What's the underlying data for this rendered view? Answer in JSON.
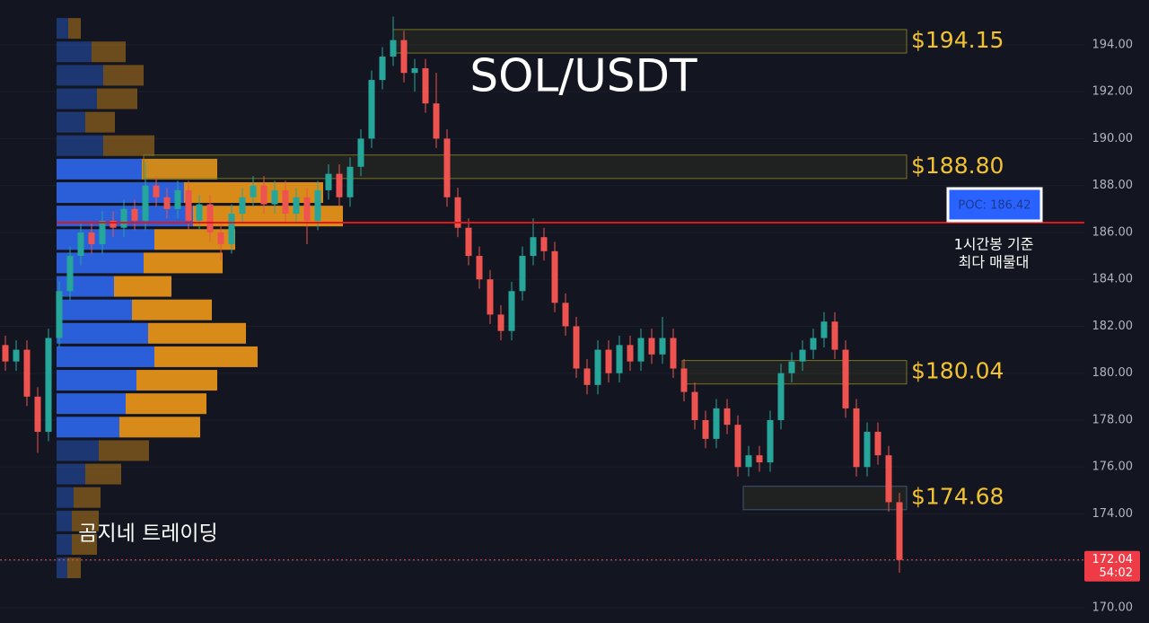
{
  "chart_data": {
    "type": "candlestick",
    "title": "SOL/USDT",
    "watermark": "곰지네 트레이딩",
    "ylim": [
      169.35,
      195.91
    ],
    "yticks": [
      {
        "value": 170,
        "label": "170.00"
      },
      {
        "value": 172,
        "label": "172.00"
      },
      {
        "value": 174,
        "label": "174.00"
      },
      {
        "value": 176,
        "label": "176.00"
      },
      {
        "value": 178,
        "label": "178.00"
      },
      {
        "value": 180,
        "label": "180.00"
      },
      {
        "value": 182,
        "label": "182.00"
      },
      {
        "value": 184,
        "label": "184.00"
      },
      {
        "value": 186,
        "label": "186.00"
      },
      {
        "value": 188,
        "label": "188.00"
      },
      {
        "value": 190,
        "label": "190.00"
      },
      {
        "value": 192,
        "label": "192.00"
      },
      {
        "value": 194,
        "label": "194.00"
      }
    ],
    "grid": true,
    "up_color": "#26a69a",
    "down_color": "#ef5350",
    "candles": [
      [
        181.2,
        181.6,
        180.1,
        180.5
      ],
      [
        180.5,
        181.4,
        180.1,
        181.0
      ],
      [
        181.0,
        181.4,
        178.6,
        179.0
      ],
      [
        179.0,
        179.4,
        176.6,
        177.5
      ],
      [
        177.5,
        181.9,
        177.1,
        181.5
      ],
      [
        181.5,
        183.9,
        181.1,
        183.5
      ],
      [
        183.5,
        185.4,
        183.1,
        185.0
      ],
      [
        185.0,
        186.4,
        184.6,
        186.0
      ],
      [
        186.0,
        186.4,
        185.1,
        185.5
      ],
      [
        185.5,
        186.9,
        185.1,
        186.5
      ],
      [
        186.5,
        186.9,
        185.8,
        186.2
      ],
      [
        186.2,
        187.4,
        185.8,
        187.0
      ],
      [
        187.0,
        187.4,
        186.1,
        186.5
      ],
      [
        186.5,
        189.0,
        186.1,
        188.0
      ],
      [
        188.0,
        188.4,
        187.1,
        187.5
      ],
      [
        187.5,
        187.9,
        186.6,
        187.0
      ],
      [
        187.0,
        188.2,
        186.6,
        187.8
      ],
      [
        187.8,
        188.2,
        186.1,
        186.5
      ],
      [
        186.5,
        187.6,
        186.1,
        187.2
      ],
      [
        187.2,
        187.6,
        185.6,
        186.0
      ],
      [
        186.0,
        186.4,
        184.8,
        185.5
      ],
      [
        185.5,
        187.2,
        185.1,
        186.8
      ],
      [
        186.8,
        187.9,
        186.4,
        187.5
      ],
      [
        187.5,
        188.4,
        187.1,
        188.0
      ],
      [
        188.0,
        188.4,
        186.8,
        187.2
      ],
      [
        187.2,
        188.2,
        186.8,
        187.8
      ],
      [
        187.8,
        188.2,
        186.4,
        186.8
      ],
      [
        186.8,
        187.9,
        186.4,
        187.5
      ],
      [
        187.5,
        187.9,
        185.5,
        186.5
      ],
      [
        186.5,
        188.2,
        186.1,
        187.8
      ],
      [
        187.8,
        188.9,
        187.4,
        188.5
      ],
      [
        188.5,
        188.9,
        187.1,
        187.5
      ],
      [
        187.5,
        189.2,
        187.1,
        188.8
      ],
      [
        188.8,
        190.4,
        188.4,
        190.0
      ],
      [
        190.0,
        192.9,
        189.6,
        192.5
      ],
      [
        192.5,
        193.9,
        192.1,
        193.5
      ],
      [
        193.5,
        195.2,
        193.1,
        194.2
      ],
      [
        194.2,
        194.6,
        192.4,
        192.8
      ],
      [
        192.8,
        193.4,
        192.0,
        193.0
      ],
      [
        193.0,
        193.4,
        191.1,
        191.5
      ],
      [
        191.5,
        192.8,
        189.6,
        190.0
      ],
      [
        190.0,
        190.4,
        187.1,
        187.5
      ],
      [
        187.5,
        187.9,
        185.8,
        186.2
      ],
      [
        186.2,
        186.6,
        184.6,
        185.0
      ],
      [
        185.0,
        185.4,
        183.6,
        184.0
      ],
      [
        184.0,
        184.4,
        182.1,
        182.5
      ],
      [
        182.5,
        182.9,
        181.4,
        181.8
      ],
      [
        181.8,
        183.9,
        181.4,
        183.5
      ],
      [
        183.5,
        185.4,
        183.1,
        185.0
      ],
      [
        185.0,
        186.6,
        184.6,
        185.8
      ],
      [
        185.8,
        186.2,
        184.8,
        185.2
      ],
      [
        185.2,
        185.6,
        182.6,
        183.0
      ],
      [
        183.0,
        183.4,
        181.6,
        182.0
      ],
      [
        182.0,
        182.4,
        179.8,
        180.2
      ],
      [
        180.2,
        180.6,
        179.1,
        179.5
      ],
      [
        179.5,
        181.4,
        179.1,
        181.0
      ],
      [
        181.0,
        181.4,
        179.6,
        180.0
      ],
      [
        180.0,
        181.6,
        179.6,
        181.2
      ],
      [
        181.2,
        181.6,
        180.1,
        180.5
      ],
      [
        180.5,
        181.9,
        180.1,
        181.5
      ],
      [
        181.5,
        181.9,
        180.4,
        180.8
      ],
      [
        180.8,
        182.4,
        180.4,
        181.5
      ],
      [
        181.5,
        181.9,
        179.8,
        180.2
      ],
      [
        180.2,
        180.6,
        178.8,
        179.2
      ],
      [
        179.2,
        179.6,
        177.6,
        178.0
      ],
      [
        178.0,
        178.4,
        176.8,
        177.2
      ],
      [
        177.2,
        178.9,
        176.8,
        178.5
      ],
      [
        178.5,
        178.9,
        177.4,
        177.8
      ],
      [
        177.8,
        178.2,
        175.6,
        176.0
      ],
      [
        176.0,
        176.9,
        175.6,
        176.5
      ],
      [
        176.5,
        176.9,
        175.8,
        176.2
      ],
      [
        176.2,
        178.4,
        175.8,
        178.0
      ],
      [
        178.0,
        180.4,
        177.6,
        180.0
      ],
      [
        180.0,
        180.9,
        179.6,
        180.5
      ],
      [
        180.5,
        181.4,
        180.1,
        181.0
      ],
      [
        181.0,
        181.9,
        180.6,
        181.5
      ],
      [
        181.5,
        182.6,
        181.1,
        182.2
      ],
      [
        182.2,
        182.6,
        180.6,
        181.0
      ],
      [
        181.0,
        181.4,
        178.1,
        178.5
      ],
      [
        178.5,
        178.9,
        175.6,
        176.0
      ],
      [
        176.0,
        177.9,
        175.6,
        177.5
      ],
      [
        177.5,
        177.9,
        176.1,
        176.5
      ],
      [
        176.5,
        176.9,
        174.1,
        174.5
      ],
      [
        174.5,
        174.9,
        171.5,
        172.04
      ]
    ],
    "volume_profile": {
      "prices": [
        194.7,
        193.7,
        192.7,
        191.7,
        190.7,
        189.7,
        188.7,
        187.7,
        186.7,
        185.7,
        184.7,
        183.7,
        182.7,
        181.7,
        180.7,
        179.7,
        178.7,
        177.7,
        176.7,
        175.7,
        174.7,
        173.7,
        172.7,
        171.7
      ],
      "buy": [
        13,
        39,
        52,
        45,
        32,
        52,
        95,
        142,
        152,
        109,
        97,
        64,
        84,
        102,
        109,
        89,
        77,
        70,
        47,
        32,
        19,
        17,
        17,
        12
      ],
      "sell": [
        14,
        38,
        45,
        45,
        33,
        57,
        84,
        155,
        167,
        90,
        88,
        64,
        89,
        109,
        115,
        90,
        90,
        90,
        56,
        40,
        30,
        30,
        28,
        15
      ],
      "buy_color": "#2b5fd9",
      "sell_color": "#d98b1a"
    },
    "levels": [
      {
        "value": 194.15,
        "label": "$194.15"
      },
      {
        "value": 188.8,
        "label": "$188.80"
      },
      {
        "value": 180.04,
        "label": "$180.04"
      },
      {
        "value": 174.68,
        "label": "$174.68"
      }
    ],
    "level_color": "#f2c230",
    "poc": {
      "value": 186.42,
      "label": "POC: 186.42"
    },
    "poc_note": [
      "1시간봉 기준",
      "최다 매물대"
    ],
    "last_price": 172.04,
    "countdown": "54:02"
  }
}
